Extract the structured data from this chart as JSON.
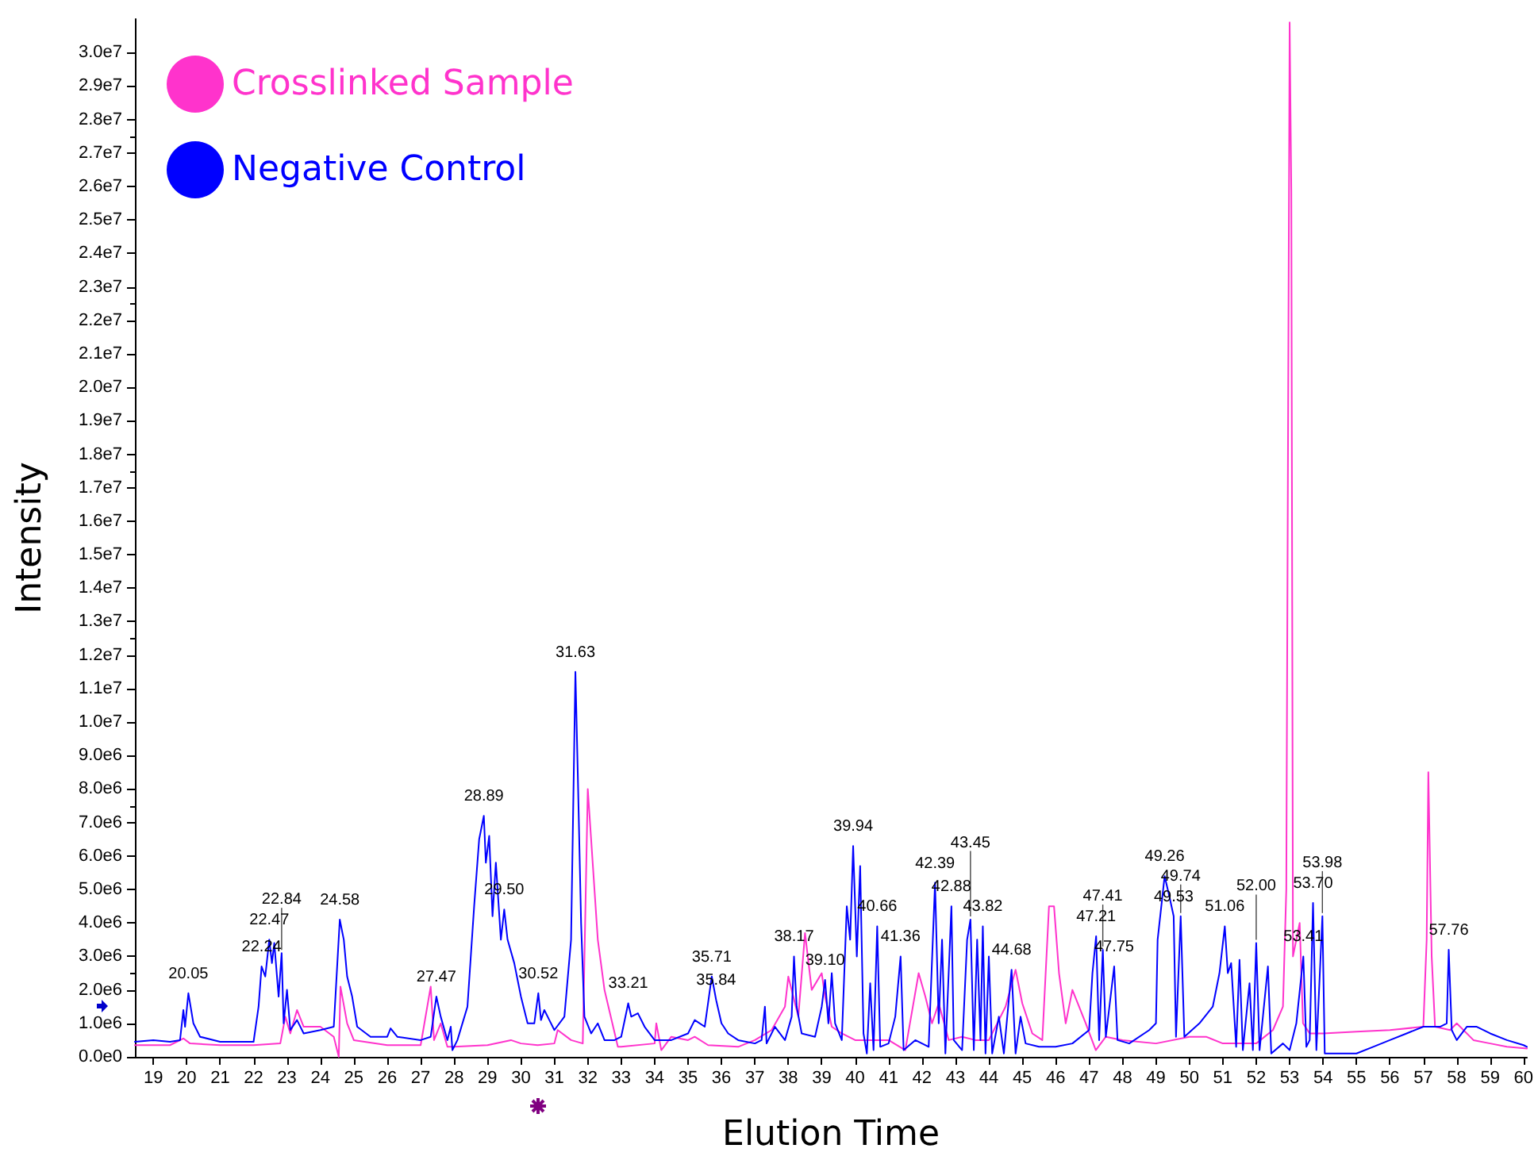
{
  "chart_data": {
    "type": "line",
    "xlabel": "Elution Time",
    "ylabel": "Intensity",
    "legend": "top left",
    "grid": false,
    "marker": "none",
    "line_style": "solid",
    "xlim": [
      18.45,
      60.1
    ],
    "xticks": [
      19,
      20,
      21,
      22,
      23,
      24,
      25,
      26,
      27,
      28,
      29,
      30,
      31,
      32,
      33,
      34,
      35,
      36,
      37,
      38,
      39,
      40,
      41,
      42,
      43,
      44,
      45,
      46,
      47,
      48,
      49,
      50,
      51,
      52,
      53,
      54,
      55,
      56,
      57,
      58,
      59,
      60
    ],
    "ylim": [
      0,
      31000000.0
    ],
    "yticks": [
      {
        "value": 0,
        "label": "0.0e0"
      },
      {
        "value": 1000000.0,
        "label": "1.0e6"
      },
      {
        "value": 2000000.0,
        "label": "2.0e6"
      },
      {
        "value": 3000000.0,
        "label": "3.0e6"
      },
      {
        "value": 4000000.0,
        "label": "4.0e6"
      },
      {
        "value": 5000000.0,
        "label": "5.0e6"
      },
      {
        "value": 6000000.0,
        "label": "6.0e6"
      },
      {
        "value": 7000000.0,
        "label": "7.0e6"
      },
      {
        "value": 8000000.0,
        "label": "8.0e6"
      },
      {
        "value": 9000000.0,
        "label": "9.0e6"
      },
      {
        "value": 10000000.0,
        "label": "1.0e7"
      },
      {
        "value": 11000000.0,
        "label": "1.1e7"
      },
      {
        "value": 12000000.0,
        "label": "1.2e7"
      },
      {
        "value": 13000000.0,
        "label": "1.3e7"
      },
      {
        "value": 14000000.0,
        "label": "1.4e7"
      },
      {
        "value": 15000000.0,
        "label": "1.5e7"
      },
      {
        "value": 16000000.0,
        "label": "1.6e7"
      },
      {
        "value": 17000000.0,
        "label": "1.7e7"
      },
      {
        "value": 18000000.0,
        "label": "1.8e7"
      },
      {
        "value": 19000000.0,
        "label": "1.9e7"
      },
      {
        "value": 20000000.0,
        "label": "2.0e7"
      },
      {
        "value": 21000000.0,
        "label": "2.1e7"
      },
      {
        "value": 22000000.0,
        "label": "2.2e7"
      },
      {
        "value": 23000000.0,
        "label": "2.3e7"
      },
      {
        "value": 24000000.0,
        "label": "2.4e7"
      },
      {
        "value": 25000000.0,
        "label": "2.5e7"
      },
      {
        "value": 26000000.0,
        "label": "2.6e7"
      },
      {
        "value": 27000000.0,
        "label": "2.7e7"
      },
      {
        "value": 28000000.0,
        "label": "2.8e7"
      },
      {
        "value": 29000000.0,
        "label": "2.9e7"
      },
      {
        "value": 30000000.0,
        "label": "3.0e7"
      }
    ],
    "series": [
      {
        "name": "Crosslinked Sample",
        "color": "#ff33cc",
        "x": [
          18.45,
          19.5,
          19.9,
          20.1,
          21,
          22,
          22.8,
          22.95,
          23.1,
          23.3,
          23.5,
          24.0,
          24.4,
          24.55,
          24.6,
          24.8,
          25.0,
          26,
          27.0,
          27.3,
          27.4,
          27.6,
          27.8,
          28.0,
          29,
          29.7,
          30,
          30.5,
          31.0,
          31.1,
          31.5,
          31.85,
          32.0,
          32.2,
          32.3,
          32.5,
          32.9,
          33.0,
          34.0,
          34.05,
          34.2,
          34.5,
          35,
          35.2,
          35.6,
          36.5,
          37.0,
          37.5,
          37.9,
          38.0,
          38.3,
          38.5,
          38.7,
          39.0,
          39.1,
          39.3,
          39.6,
          40.0,
          40.5,
          41.0,
          41.5,
          41.9,
          42.1,
          42.3,
          42.5,
          42.8,
          43.2,
          43.6,
          44.0,
          44.5,
          44.8,
          45.0,
          45.3,
          45.6,
          45.8,
          45.95,
          46.1,
          46.3,
          46.5,
          46.7,
          46.9,
          47.2,
          47.5,
          48,
          49,
          50,
          50.5,
          51,
          52,
          52.5,
          52.8,
          52.9,
          53.0,
          53.05,
          53.1,
          53.3,
          53.4,
          53.6,
          54.0,
          55,
          56,
          57.0,
          57.1,
          57.15,
          57.25,
          57.35,
          57.8,
          58.0,
          58.5,
          59,
          59.5,
          60.1
        ],
        "values": [
          350000.0,
          350000.0,
          550000.0,
          400000.0,
          350000.0,
          350000.0,
          400000.0,
          1200000.0,
          700000.0,
          1400000.0,
          900000.0,
          900000.0,
          600000.0,
          0,
          2100000.0,
          1000000.0,
          500000.0,
          350000.0,
          350000.0,
          2100000.0,
          500000.0,
          1000000.0,
          300000.0,
          300000.0,
          350000.0,
          500000.0,
          400000.0,
          350000.0,
          400000.0,
          800000.0,
          500000.0,
          400000.0,
          8000000.0,
          5000000.0,
          3500000.0,
          2000000.0,
          300000.0,
          300000.0,
          400000.0,
          1000000.0,
          200000.0,
          600000.0,
          500000.0,
          600000.0,
          350000.0,
          300000.0,
          500000.0,
          800000.0,
          1500000.0,
          2400000.0,
          1200000.0,
          3700000.0,
          2000000.0,
          2500000.0,
          1800000.0,
          900000.0,
          700000.0,
          500000.0,
          500000.0,
          500000.0,
          200000.0,
          2500000.0,
          1800000.0,
          1000000.0,
          1600000.0,
          500000.0,
          600000.0,
          500000.0,
          500000.0,
          1500000.0,
          2600000.0,
          1600000.0,
          700000.0,
          500000.0,
          4500000.0,
          4500000.0,
          2500000.0,
          1000000.0,
          2000000.0,
          1500000.0,
          1000000.0,
          200000.0,
          600000.0,
          500000.0,
          400000.0,
          600000.0,
          600000.0,
          400000.0,
          400000.0,
          800000.0,
          1500000.0,
          5000000.0,
          30900000.0,
          25800000.0,
          3000000.0,
          4000000.0,
          1000000.0,
          700000.0,
          700000.0,
          750000.0,
          800000.0,
          900000.0,
          3500000.0,
          8500000.0,
          3000000.0,
          900000.0,
          800000.0,
          1000000.0,
          500000.0,
          400000.0,
          300000.0,
          250000.0
        ]
      },
      {
        "name": "Negative Control",
        "color": "#0000ff",
        "x": [
          18.45,
          19,
          19.5,
          19.8,
          19.9,
          19.95,
          20.05,
          20.2,
          20.4,
          21,
          22,
          22.15,
          22.24,
          22.35,
          22.47,
          22.55,
          22.62,
          22.75,
          22.84,
          22.9,
          23.0,
          23.1,
          23.3,
          23.5,
          24.0,
          24.4,
          24.58,
          24.7,
          24.8,
          24.95,
          25.1,
          25.5,
          26,
          26.1,
          26.3,
          27,
          27.3,
          27.47,
          27.6,
          27.8,
          27.9,
          27.95,
          28.1,
          28.4,
          28.6,
          28.75,
          28.89,
          28.95,
          29.05,
          29.15,
          29.25,
          29.4,
          29.5,
          29.6,
          29.8,
          30.0,
          30.2,
          30.4,
          30.52,
          30.6,
          30.7,
          30.85,
          31.0,
          31.3,
          31.5,
          31.63,
          31.7,
          31.8,
          31.9,
          32.1,
          32.3,
          32.5,
          32.8,
          33.0,
          33.21,
          33.3,
          33.5,
          33.7,
          34.0,
          34.5,
          35.0,
          35.2,
          35.5,
          35.71,
          35.84,
          36.0,
          36.2,
          36.5,
          37.0,
          37.2,
          37.3,
          37.35,
          37.6,
          37.9,
          38.1,
          38.17,
          38.25,
          38.4,
          38.8,
          39.0,
          39.1,
          39.2,
          39.3,
          39.4,
          39.6,
          39.75,
          39.85,
          39.94,
          40.05,
          40.15,
          40.25,
          40.35,
          40.45,
          40.55,
          40.66,
          40.75,
          41.0,
          41.2,
          41.36,
          41.45,
          41.8,
          42.2,
          42.39,
          42.5,
          42.6,
          42.7,
          42.88,
          42.95,
          43.2,
          43.35,
          43.45,
          43.55,
          43.65,
          43.75,
          43.82,
          43.9,
          44.0,
          44.1,
          44.3,
          44.45,
          44.68,
          44.8,
          44.95,
          45.1,
          45.5,
          46,
          46.5,
          47.0,
          47.1,
          47.21,
          47.3,
          47.41,
          47.5,
          47.75,
          47.85,
          48.2,
          48.8,
          49.0,
          49.05,
          49.26,
          49.4,
          49.53,
          49.6,
          49.74,
          49.85,
          50.3,
          50.7,
          50.9,
          51.06,
          51.15,
          51.25,
          51.4,
          51.5,
          51.6,
          51.8,
          51.9,
          52.0,
          52.1,
          52.35,
          52.45,
          52.8,
          53.0,
          53.2,
          53.41,
          53.5,
          53.6,
          53.7,
          53.8,
          53.98,
          54.05,
          54.5,
          55.0,
          55.5,
          56.0,
          56.5,
          57.0,
          57.5,
          57.7,
          57.76,
          57.85,
          58.0,
          58.3,
          58.6,
          59.0,
          59.5,
          60.0,
          60.1
        ],
        "values": [
          450000.0,
          500000.0,
          450000.0,
          500000.0,
          1400000.0,
          900000.0,
          1900000.0,
          1000000.0,
          600000.0,
          450000.0,
          450000.0,
          1500000.0,
          2700000.0,
          2400000.0,
          3500000.0,
          2800000.0,
          3400000.0,
          1800000.0,
          3100000.0,
          1000000.0,
          2000000.0,
          800000.0,
          1100000.0,
          700000.0,
          800000.0,
          900000.0,
          4100000.0,
          3500000.0,
          2400000.0,
          1800000.0,
          900000.0,
          600000.0,
          600000.0,
          850000.0,
          600000.0,
          500000.0,
          600000.0,
          1800000.0,
          1200000.0,
          500000.0,
          900000.0,
          200000.0,
          500000.0,
          1500000.0,
          4500000.0,
          6500000.0,
          7200000.0,
          5800000.0,
          6600000.0,
          4200000.0,
          5800000.0,
          3500000.0,
          4400000.0,
          3500000.0,
          2800000.0,
          1800000.0,
          1000000.0,
          1000000.0,
          1900000.0,
          1100000.0,
          1400000.0,
          1100000.0,
          800000.0,
          1200000.0,
          3500000.0,
          11500000.0,
          8500000.0,
          4000000.0,
          1200000.0,
          700000.0,
          1000000.0,
          500000.0,
          500000.0,
          600000.0,
          1600000.0,
          1200000.0,
          1300000.0,
          900000.0,
          500000.0,
          500000.0,
          700000.0,
          1100000.0,
          900000.0,
          2400000.0,
          1700000.0,
          1000000.0,
          700000.0,
          500000.0,
          400000.0,
          500000.0,
          1500000.0,
          400000.0,
          900000.0,
          500000.0,
          1200000.0,
          3000000.0,
          1500000.0,
          700000.0,
          600000.0,
          1500000.0,
          2300000.0,
          1000000.0,
          2500000.0,
          1000000.0,
          500000.0,
          4500000.0,
          3500000.0,
          6300000.0,
          3000000.0,
          5700000.0,
          700000.0,
          100000.0,
          2200000.0,
          200000.0,
          3900000.0,
          300000.0,
          400000.0,
          1200000.0,
          3000000.0,
          200000.0,
          500000.0,
          300000.0,
          5200000.0,
          1000000.0,
          3500000.0,
          100000.0,
          4500000.0,
          500000.0,
          200000.0,
          3500000.0,
          4100000.0,
          200000.0,
          3500000.0,
          500000.0,
          3900000.0,
          100000.0,
          3000000.0,
          100000.0,
          1200000.0,
          100000.0,
          2600000.0,
          100000.0,
          1200000.0,
          400000.0,
          300000.0,
          300000.0,
          400000.0,
          800000.0,
          2500000.0,
          3600000.0,
          500000.0,
          3200000.0,
          600000.0,
          2700000.0,
          500000.0,
          400000.0,
          800000.0,
          1000000.0,
          3500000.0,
          5400000.0,
          4800000.0,
          4200000.0,
          600000.0,
          4200000.0,
          600000.0,
          1000000.0,
          1500000.0,
          2500000.0,
          3900000.0,
          2500000.0,
          2800000.0,
          300000.0,
          2900000.0,
          200000.0,
          2200000.0,
          200000.0,
          3400000.0,
          200000.0,
          2700000.0,
          100000.0,
          400000.0,
          200000.0,
          1000000.0,
          3000000.0,
          300000.0,
          500000.0,
          4600000.0,
          200000.0,
          4200000.0,
          100000.0,
          100000.0,
          100000.0,
          300000.0,
          500000.0,
          700000.0,
          900000.0,
          900000.0,
          1000000.0,
          3200000.0,
          800000.0,
          500000.0,
          900000.0,
          900000.0,
          700000.0,
          500000.0,
          350000.0,
          300000.0
        ]
      }
    ],
    "annotations": [
      {
        "text": "20.05",
        "x": 20.05,
        "y": 1900000.0
      },
      {
        "text": "22.24",
        "x": 22.24,
        "y": 2700000.0
      },
      {
        "text": "22.47",
        "x": 22.47,
        "y": 3500000.0
      },
      {
        "text": "22.84",
        "x": 22.84,
        "y": 3100000.0
      },
      {
        "text": "24.58",
        "x": 24.58,
        "y": 4100000.0
      },
      {
        "text": "27.47",
        "x": 27.47,
        "y": 1800000.0
      },
      {
        "text": "28.89",
        "x": 28.89,
        "y": 7200000.0
      },
      {
        "text": "29.50",
        "x": 29.5,
        "y": 4400000.0
      },
      {
        "text": "30.52",
        "x": 30.52,
        "y": 1900000.0
      },
      {
        "text": "31.63",
        "x": 31.63,
        "y": 11500000.0
      },
      {
        "text": "33.21",
        "x": 33.21,
        "y": 1600000.0
      },
      {
        "text": "35.71",
        "x": 35.71,
        "y": 2400000.0
      },
      {
        "text": "35.84",
        "x": 35.84,
        "y": 1700000.0
      },
      {
        "text": "38.17",
        "x": 38.17,
        "y": 3000000.0
      },
      {
        "text": "39.10",
        "x": 39.1,
        "y": 2300000.0
      },
      {
        "text": "39.94",
        "x": 39.94,
        "y": 6300000.0
      },
      {
        "text": "40.66",
        "x": 40.66,
        "y": 3900000.0
      },
      {
        "text": "41.36",
        "x": 41.36,
        "y": 3000000.0
      },
      {
        "text": "42.39",
        "x": 42.39,
        "y": 5200000.0
      },
      {
        "text": "42.88",
        "x": 42.88,
        "y": 4500000.0
      },
      {
        "text": "43.45",
        "x": 43.45,
        "y": 4100000.0
      },
      {
        "text": "43.82",
        "x": 43.82,
        "y": 3900000.0
      },
      {
        "text": "44.68",
        "x": 44.68,
        "y": 2600000.0
      },
      {
        "text": "47.21",
        "x": 47.21,
        "y": 3600000.0
      },
      {
        "text": "47.41",
        "x": 47.41,
        "y": 3200000.0
      },
      {
        "text": "47.75",
        "x": 47.75,
        "y": 2700000.0
      },
      {
        "text": "49.26",
        "x": 49.26,
        "y": 5400000.0
      },
      {
        "text": "49.53",
        "x": 49.53,
        "y": 4200000.0
      },
      {
        "text": "49.74",
        "x": 49.74,
        "y": 4200000.0
      },
      {
        "text": "51.06",
        "x": 51.06,
        "y": 3900000.0
      },
      {
        "text": "52.00",
        "x": 52.0,
        "y": 3400000.0
      },
      {
        "text": "53.41",
        "x": 53.41,
        "y": 3000000.0
      },
      {
        "text": "53.70",
        "x": 53.7,
        "y": 4600000.0
      },
      {
        "text": "53.98",
        "x": 53.98,
        "y": 4200000.0
      },
      {
        "text": "57.76",
        "x": 57.76,
        "y": 3200000.0
      }
    ]
  }
}
